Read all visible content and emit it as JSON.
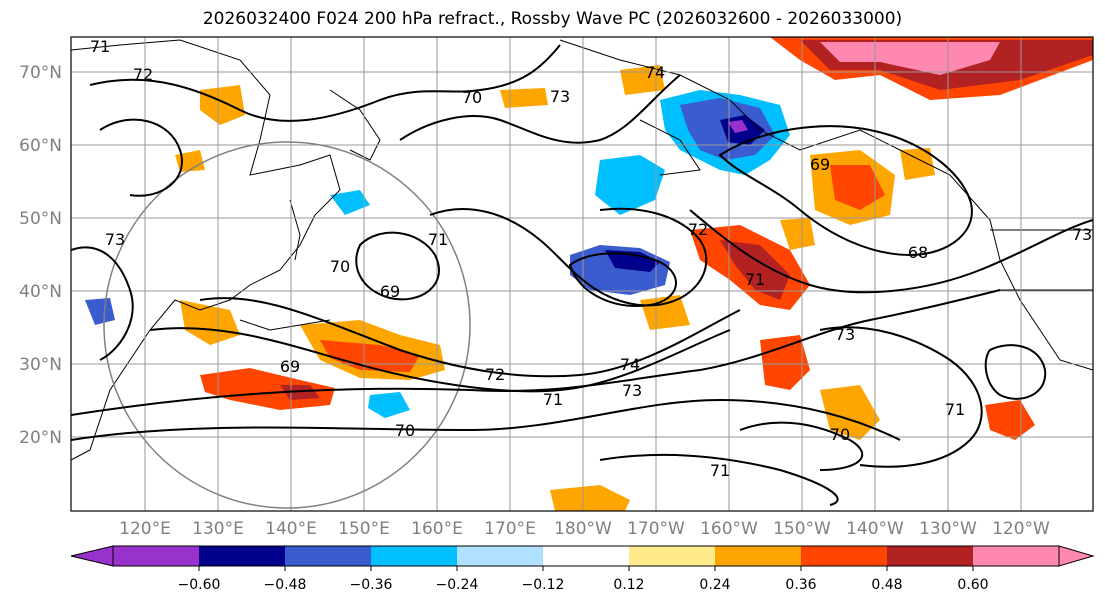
{
  "title": "2026032400 F024 200 hPa refract., Rossby Wave PC (2026032600 - 2026033000)",
  "map": {
    "lat_labels": [
      "70°N",
      "60°N",
      "50°N",
      "40°N",
      "30°N",
      "20°N"
    ],
    "lon_labels": [
      "120°E",
      "130°E",
      "140°E",
      "150°E",
      "160°E",
      "170°E",
      "180°W",
      "170°W",
      "160°W",
      "150°W",
      "140°W",
      "130°W",
      "120°W"
    ],
    "contour_labels": [
      "71",
      "72",
      "70",
      "73",
      "74",
      "69",
      "71",
      "72",
      "73",
      "68",
      "70",
      "69",
      "74",
      "72",
      "71",
      "73",
      "70",
      "71",
      "69",
      "71",
      "70",
      "73",
      "71",
      "73"
    ]
  },
  "colorbar": {
    "colors": [
      "#9932CC",
      "#00008B",
      "#3B5CCF",
      "#00BFFF",
      "#B0E0FF",
      "#FFFFFF",
      "#FFEB8A",
      "#FFA500",
      "#FF4500",
      "#B22222",
      "#FF88B0"
    ],
    "tick_labels": [
      "−0.60",
      "−0.48",
      "−0.36",
      "−0.24",
      "−0.12",
      "0.12",
      "0.24",
      "0.36",
      "0.48",
      "0.60"
    ]
  }
}
